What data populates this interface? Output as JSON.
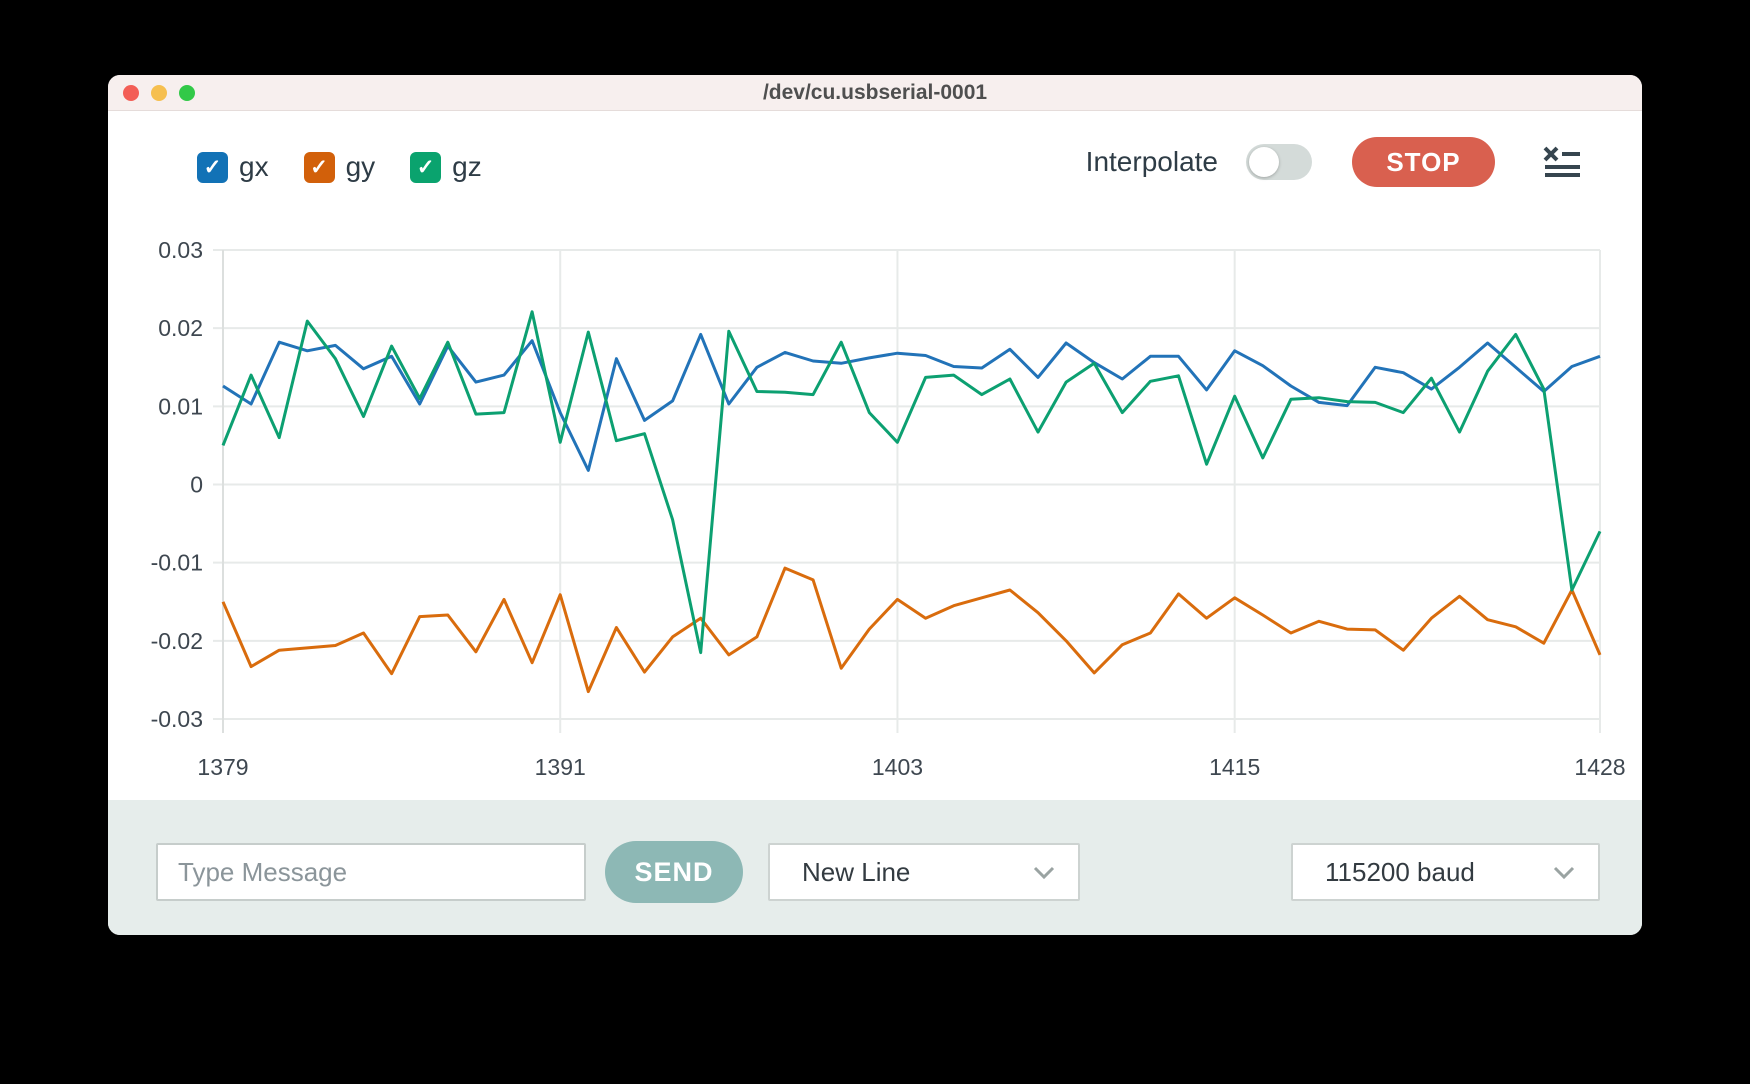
{
  "window": {
    "title": "/dev/cu.usbserial-0001"
  },
  "titlebar_buttons": {
    "close_color": "#f35e56",
    "minimize_color": "#f6bf4f",
    "zoom_color": "#32c948"
  },
  "icons": {
    "check": "✓"
  },
  "legend": {
    "items": [
      {
        "label": "gx",
        "color": "#1272b6",
        "checked": true
      },
      {
        "label": "gy",
        "color": "#d2600a",
        "checked": true
      },
      {
        "label": "gz",
        "color": "#0aa36e",
        "checked": true
      }
    ]
  },
  "toolbar": {
    "interpolate_label": "Interpolate",
    "interpolate_on": false,
    "stop_label": "STOP",
    "stop_color": "#d9604f"
  },
  "chart_data": {
    "type": "line",
    "x_start": 1379,
    "x_end": 1428,
    "x_ticks": [
      1379,
      1391,
      1403,
      1415,
      1428
    ],
    "y_ticks": [
      0.03,
      0.02,
      0.01,
      0,
      -0.01,
      -0.02,
      -0.03
    ],
    "y_tick_labels": [
      "0.03",
      "0.02",
      "0.01",
      "0",
      "-0.01",
      "-0.02",
      "-0.03"
    ],
    "ylim": [
      -0.03,
      0.03
    ],
    "grid": true,
    "grid_color": "#e7eae9",
    "tick_text_color": "#3e4750",
    "legend_position": "top-left",
    "series": [
      {
        "name": "gx",
        "color": "#2273b8",
        "values": [
          0.0126,
          0.0103,
          0.0182,
          0.0171,
          0.0178,
          0.0148,
          0.0164,
          0.0103,
          0.0177,
          0.0131,
          0.014,
          0.0184,
          0.0092,
          0.0018,
          0.0161,
          0.0082,
          0.0107,
          0.0192,
          0.0103,
          0.015,
          0.0169,
          0.0158,
          0.0155,
          0.0162,
          0.0168,
          0.0165,
          0.0151,
          0.0149,
          0.0173,
          0.0137,
          0.0181,
          0.0156,
          0.0135,
          0.0164,
          0.0164,
          0.0121,
          0.0171,
          0.0152,
          0.0126,
          0.0105,
          0.0101,
          0.015,
          0.0143,
          0.0122,
          0.015,
          0.0181,
          0.015,
          0.0119,
          0.0151,
          0.0164
        ]
      },
      {
        "name": "gy",
        "color": "#d96c0d",
        "values": [
          -0.015,
          -0.0233,
          -0.0212,
          -0.0209,
          -0.0206,
          -0.019,
          -0.0242,
          -0.0169,
          -0.0167,
          -0.0214,
          -0.0147,
          -0.0228,
          -0.0141,
          -0.0265,
          -0.0183,
          -0.024,
          -0.0195,
          -0.0171,
          -0.0218,
          -0.0195,
          -0.0107,
          -0.0122,
          -0.0235,
          -0.0185,
          -0.0147,
          -0.0171,
          -0.0155,
          -0.0145,
          -0.0135,
          -0.0164,
          -0.02,
          -0.0241,
          -0.0205,
          -0.019,
          -0.014,
          -0.0171,
          -0.0145,
          -0.0167,
          -0.019,
          -0.0175,
          -0.0185,
          -0.0186,
          -0.0212,
          -0.0171,
          -0.0143,
          -0.0173,
          -0.0182,
          -0.0203,
          -0.0135,
          -0.0218
        ]
      },
      {
        "name": "gz",
        "color": "#0ca071",
        "values": [
          0.005,
          0.014,
          0.006,
          0.0209,
          0.0161,
          0.0087,
          0.0177,
          0.011,
          0.0182,
          0.009,
          0.0092,
          0.0221,
          0.0054,
          0.0195,
          0.0056,
          0.0065,
          -0.0045,
          -0.0215,
          0.0196,
          0.0119,
          0.0118,
          0.0115,
          0.0182,
          0.0092,
          0.0054,
          0.0137,
          0.014,
          0.0115,
          0.0135,
          0.0067,
          0.0131,
          0.0155,
          0.0092,
          0.0132,
          0.0139,
          0.0026,
          0.0113,
          0.0034,
          0.0109,
          0.0111,
          0.0106,
          0.0105,
          0.0092,
          0.0136,
          0.0067,
          0.0145,
          0.0192,
          0.0122,
          -0.0135,
          -0.006
        ]
      }
    ]
  },
  "bottom_bar": {
    "message_placeholder": "Type Message",
    "message_value": "",
    "send_label": "SEND",
    "line_ending_selected": "New Line",
    "baud_selected": "115200 baud"
  }
}
